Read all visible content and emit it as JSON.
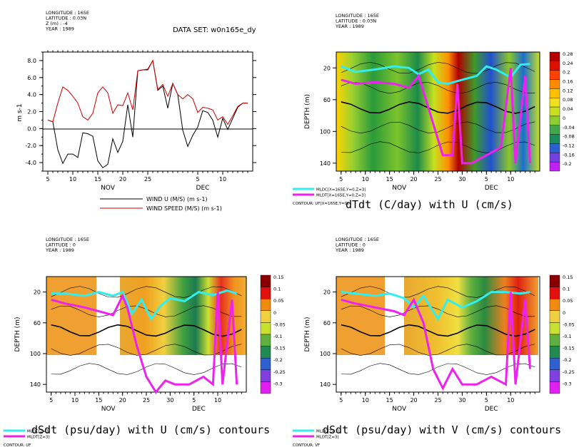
{
  "panels": [
    {
      "header": [
        "LONGITUDE : 165E",
        "LATITUDE : 0.03N",
        "Z (m) : -4",
        "YEAR : 1989"
      ],
      "dataset": "DATA SET: w0n165e_dy",
      "ylabel": "m s-1",
      "yticks": [
        "8.0",
        "6.0",
        "4.0",
        "2.0",
        "0.0",
        "-2.0",
        "-4.0"
      ],
      "xticks": [
        "5",
        "10",
        "15",
        "20",
        "25",
        "5",
        "10"
      ],
      "months": [
        "NOV",
        "DEC"
      ],
      "legend": [
        "WIND U (M/S) (m s-1)",
        "WIND SPEED (M/S) (m s-1)"
      ]
    },
    {
      "header": [
        "LONGITUDE : 165E",
        "LATITUDE : 0.03N",
        "YEAR : 1989"
      ],
      "ylabel": "DEPTH (m)",
      "yticks": [
        "20",
        "60",
        "100",
        "140"
      ],
      "xticks": [
        "5",
        "10",
        "15",
        "20",
        "25",
        "30",
        "5",
        "10"
      ],
      "months": [
        "NOV",
        "DEC"
      ],
      "colorbar": [
        "0.28",
        "0.24",
        "0.2",
        "0.16",
        "0.12",
        "0.08",
        "0.04",
        "0",
        "-0.04",
        "-0.08",
        "-0.12",
        "-0.16",
        "-0.2"
      ],
      "legend": [
        "MLDC[X=165E,Y=0,Z=3]",
        "MLDT[X=165E,Y=0,Z=3]"
      ],
      "contour_note": "CONTOUR: UF[X=165E,Y=0]",
      "title": "dTdt (C/day) with U (cm/s)"
    },
    {
      "header": [
        "LONGITUDE : 165E",
        "LATITUDE : 0",
        "YEAR : 1989"
      ],
      "ylabel": "DEPTH (m)",
      "yticks": [
        "20",
        "60",
        "100",
        "140"
      ],
      "xticks": [
        "5",
        "10",
        "15",
        "20",
        "25",
        "30",
        "5",
        "10"
      ],
      "months": [
        "NOV",
        "DEC"
      ],
      "colorbar": [
        "0.15",
        "0.1",
        "0.05",
        "0",
        "-0.05",
        "-0.1",
        "-0.15",
        "-0.2",
        "-0.25",
        "-0.3"
      ],
      "legend": [
        "MLDC[Z=3]",
        "MLDT[Z=3]"
      ],
      "contour_note": "CONTOUR: UF",
      "title": "dSdt (psu/day) with U (cm/s) contours"
    },
    {
      "header": [
        "LONGITUDE : 165E",
        "LATITUDE : 0",
        "YEAR : 1989"
      ],
      "ylabel": "DEPTH (m)",
      "yticks": [
        "20",
        "60",
        "100",
        "140"
      ],
      "xticks": [
        "5",
        "10",
        "15",
        "20",
        "25",
        "30",
        "5",
        "10"
      ],
      "months": [
        "NOV",
        "DEC"
      ],
      "colorbar": [
        "0.15",
        "0.1",
        "0.05",
        "0",
        "-0.05",
        "-0.1",
        "-0.15",
        "-0.2",
        "-0.25",
        "-0.3"
      ],
      "legend": [
        "MLDC[Z=3]",
        "MLDT[Z=3]"
      ],
      "contour_note": "CONTOUR: VF",
      "title": "dSdt (psu/day) with V (cm/s) contours"
    }
  ],
  "chart_data": [
    {
      "type": "line",
      "x_unit": "day index (Nov 5 = 5)",
      "x": [
        5,
        6,
        7,
        8,
        9,
        10,
        11,
        12,
        13,
        14,
        15,
        16,
        17,
        18,
        19,
        20,
        21,
        22,
        23,
        24,
        25,
        26,
        27,
        28,
        29,
        30,
        31,
        32,
        33,
        34,
        35,
        36,
        37,
        38,
        39,
        40,
        41,
        42,
        43,
        44,
        45
      ],
      "series": [
        {
          "name": "WIND U (M/S) (m s-1)",
          "color": "#000000",
          "values": [
            1.0,
            0.8,
            -2.5,
            -4.1,
            -3.0,
            -3.0,
            -3.4,
            -0.5,
            -0.6,
            -0.9,
            -3.8,
            -4.6,
            -4.2,
            -1.2,
            -2.8,
            -1.5,
            2.8,
            -1.0,
            6.8,
            6.9,
            6.9,
            8.0,
            4.5,
            5.0,
            2.4,
            5.3,
            4.0,
            -0.2,
            -2.1,
            -0.8,
            0.2,
            2.1,
            1.9,
            1.0,
            -1.0,
            1.2,
            -0.1,
            1.2,
            2.5,
            3.0,
            3.0
          ]
        },
        {
          "name": "WIND SPEED (M/S) (m s-1)",
          "color": "#cc0000",
          "values": [
            1.0,
            0.8,
            3.0,
            4.9,
            4.5,
            3.8,
            3.0,
            1.4,
            1.0,
            1.8,
            4.2,
            4.9,
            4.2,
            1.8,
            2.8,
            2.7,
            4.2,
            2.2,
            6.8,
            6.9,
            7.0,
            8.0,
            4.6,
            5.2,
            3.8,
            5.3,
            4.0,
            3.5,
            4.0,
            3.5,
            1.9,
            2.5,
            2.4,
            2.2,
            1.0,
            1.4,
            0.5,
            1.5,
            2.6,
            3.0,
            3.0
          ]
        }
      ],
      "ylim": [
        -5,
        9
      ],
      "ylabel": "m s-1"
    },
    {
      "type": "heatmap",
      "ylim": [
        150,
        0
      ],
      "series": [
        {
          "name": "MLDC[X=165E,Y=0,Z=3]",
          "color": "#33eeee",
          "values": [
            [
              5,
              18
            ],
            [
              8,
              25
            ],
            [
              12,
              22
            ],
            [
              16,
              18
            ],
            [
              19,
              20
            ],
            [
              21,
              28
            ],
            [
              23,
              22
            ],
            [
              25,
              38
            ],
            [
              27,
              40
            ],
            [
              30,
              35
            ],
            [
              33,
              30
            ],
            [
              35,
              18
            ],
            [
              37,
              22
            ],
            [
              40,
              32
            ],
            [
              42,
              16
            ],
            [
              44,
              15
            ]
          ]
        },
        {
          "name": "MLDT[X=165E,Y=0,Z=3]",
          "color": "#ee22ee",
          "values": [
            [
              5,
              35
            ],
            [
              8,
              40
            ],
            [
              12,
              38
            ],
            [
              16,
              40
            ],
            [
              19,
              45
            ],
            [
              21,
              30
            ],
            [
              22,
              50
            ],
            [
              24,
              90
            ],
            [
              26,
              130
            ],
            [
              28,
              130
            ],
            [
              29,
              40
            ],
            [
              30,
              140
            ],
            [
              32,
              140
            ],
            [
              35,
              130
            ],
            [
              38,
              120
            ],
            [
              40,
              20
            ],
            [
              41,
              140
            ],
            [
              43,
              30
            ],
            [
              44,
              140
            ]
          ]
        }
      ],
      "title": "dTdt (C/day) with U (cm/s)"
    },
    {
      "type": "heatmap",
      "ylim": [
        150,
        0
      ],
      "series": [
        {
          "name": "MLDC[Z=3]",
          "color": "#33eeee",
          "values": [
            [
              5,
              22
            ],
            [
              8,
              22
            ],
            [
              12,
              25
            ],
            [
              15,
              20
            ],
            [
              18,
              25
            ],
            [
              20,
              20
            ],
            [
              22,
              48
            ],
            [
              24,
              30
            ],
            [
              26,
              55
            ],
            [
              28,
              38
            ],
            [
              30,
              28
            ],
            [
              33,
              32
            ],
            [
              36,
              20
            ],
            [
              39,
              24
            ],
            [
              42,
              18
            ],
            [
              44,
              22
            ]
          ]
        },
        {
          "name": "MLDT[Z=3]",
          "color": "#ee22ee",
          "values": [
            [
              5,
              30
            ],
            [
              8,
              35
            ],
            [
              12,
              40
            ],
            [
              15,
              45
            ],
            [
              18,
              50
            ],
            [
              20,
              25
            ],
            [
              21,
              40
            ],
            [
              23,
              90
            ],
            [
              25,
              130
            ],
            [
              27,
              150
            ],
            [
              29,
              135
            ],
            [
              31,
              140
            ],
            [
              34,
              140
            ],
            [
              37,
              130
            ],
            [
              39,
              140
            ],
            [
              40,
              20
            ],
            [
              41,
              140
            ],
            [
              43,
              30
            ],
            [
              44,
              140
            ]
          ]
        }
      ],
      "title": "dSdt (psu/day) with U (cm/s) contours"
    },
    {
      "type": "heatmap",
      "ylim": [
        150,
        0
      ],
      "series": [
        {
          "name": "MLDC[Z=3]",
          "color": "#33eeee",
          "values": [
            [
              5,
              20
            ],
            [
              8,
              22
            ],
            [
              12,
              25
            ],
            [
              15,
              22
            ],
            [
              18,
              28
            ],
            [
              20,
              40
            ],
            [
              22,
              25
            ],
            [
              25,
              55
            ],
            [
              27,
              30
            ],
            [
              30,
              40
            ],
            [
              33,
              32
            ],
            [
              36,
              20
            ],
            [
              39,
              20
            ],
            [
              42,
              22
            ],
            [
              44,
              20
            ]
          ]
        },
        {
          "name": "MLDT[Z=3]",
          "color": "#ee22ee",
          "values": [
            [
              5,
              30
            ],
            [
              8,
              35
            ],
            [
              12,
              40
            ],
            [
              16,
              45
            ],
            [
              18,
              50
            ],
            [
              20,
              30
            ],
            [
              22,
              60
            ],
            [
              24,
              120
            ],
            [
              26,
              145
            ],
            [
              28,
              120
            ],
            [
              30,
              140
            ],
            [
              33,
              140
            ],
            [
              36,
              130
            ],
            [
              39,
              140
            ],
            [
              40,
              20
            ],
            [
              41,
              140
            ],
            [
              43,
              30
            ],
            [
              44,
              120
            ]
          ]
        }
      ],
      "title": "dSdt (psu/day) with V (cm/s) contours"
    }
  ]
}
